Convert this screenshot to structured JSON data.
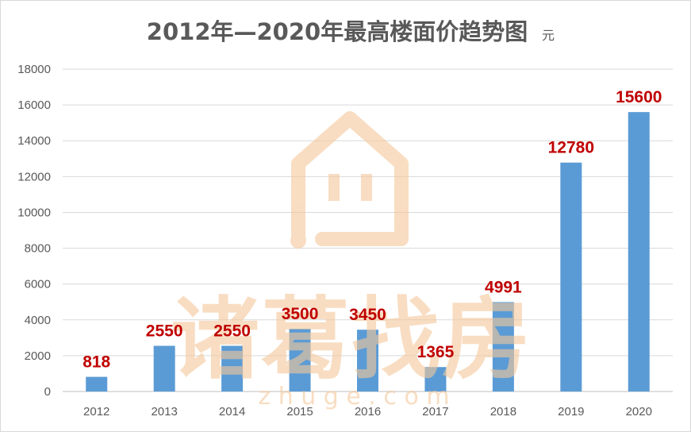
{
  "chart_data": {
    "type": "bar",
    "title": "2012年—2020年最高楼面价趋势图",
    "title_unit": "元",
    "xlabel": "",
    "ylabel": "",
    "categories": [
      "2012",
      "2013",
      "2014",
      "2015",
      "2016",
      "2017",
      "2018",
      "2019",
      "2020"
    ],
    "values": [
      818,
      2550,
      2550,
      3500,
      3450,
      1365,
      4991,
      12780,
      15600
    ],
    "data_labels": [
      "818",
      "2550",
      "2550",
      "3500",
      "3450",
      "1365",
      "4991",
      "12780",
      "15600"
    ],
    "ylim": [
      0,
      18000
    ],
    "yticks": [
      0,
      2000,
      4000,
      6000,
      8000,
      10000,
      12000,
      14000,
      16000,
      18000
    ],
    "grid": true,
    "legend": "none"
  },
  "watermark": {
    "brand_text": "诸葛找房",
    "domain_text": "z h u g e . c o m"
  },
  "colors": {
    "bar": "#5b9bd5",
    "data_label": "#c00000",
    "title": "#595959",
    "tick_label": "#595959",
    "grid": "#d9d9d9",
    "axis": "#bfbfbf",
    "watermark": "#f5c89a"
  }
}
